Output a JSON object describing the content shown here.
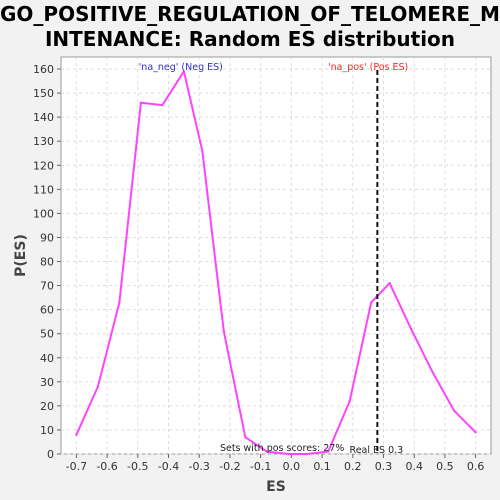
{
  "title": {
    "line1": "GO_POSITIVE_REGULATION_OF_TELOMERE_MA",
    "line2": "INTENANCE: Random ES distribution"
  },
  "chart_data": {
    "type": "line",
    "title": "GO_POSITIVE_REGULATION_OF_TELOMERE_MAINTENANCE: Random ES distribution",
    "xlabel": "ES",
    "ylabel": "P(ES)",
    "xlim": [
      -0.75,
      0.65
    ],
    "ylim": [
      0,
      165
    ],
    "xticks": [
      -0.7,
      -0.6,
      -0.5,
      -0.4,
      -0.3,
      -0.2,
      -0.1,
      0.0,
      0.1,
      0.2,
      0.3,
      0.4,
      0.5,
      0.6
    ],
    "xtick_labels": [
      "-0.7",
      "-0.6",
      "-0.5",
      "-0.4",
      "-0.3",
      "-0.2",
      "-0.1",
      "0.0",
      "0.1",
      "0.2",
      "0.3",
      "0.4",
      "0.5",
      "0.6"
    ],
    "yticks": [
      0,
      10,
      20,
      30,
      40,
      50,
      60,
      70,
      80,
      90,
      100,
      110,
      120,
      130,
      140,
      150,
      160
    ],
    "grid": true,
    "series": [
      {
        "color": "#ff44ff",
        "x": [
          -0.7,
          -0.63,
          -0.56,
          -0.49,
          -0.42,
          -0.35,
          -0.29,
          -0.22,
          -0.15,
          -0.08,
          -0.01,
          0.05,
          0.12,
          0.19,
          0.26,
          0.32,
          0.39,
          0.46,
          0.53,
          0.6
        ],
        "y": [
          8,
          28,
          63,
          146,
          145,
          159,
          126,
          51,
          7,
          1,
          0,
          0,
          1,
          22,
          63,
          71,
          52,
          34,
          18,
          9
        ]
      }
    ],
    "real_es": 0.28,
    "annotations": {
      "neg_label": "'na_neg' (Neg ES)",
      "pos_label": "'na_pos' (Pos ES)",
      "pos_scores": "Sets with pos scores: 27%",
      "real_es_label": "Real ES 0.3"
    },
    "colors": {
      "neg": "#3333cc",
      "pos": "#ff2222",
      "plot_bg": "#ffffff",
      "grid": "#dddddd"
    }
  }
}
